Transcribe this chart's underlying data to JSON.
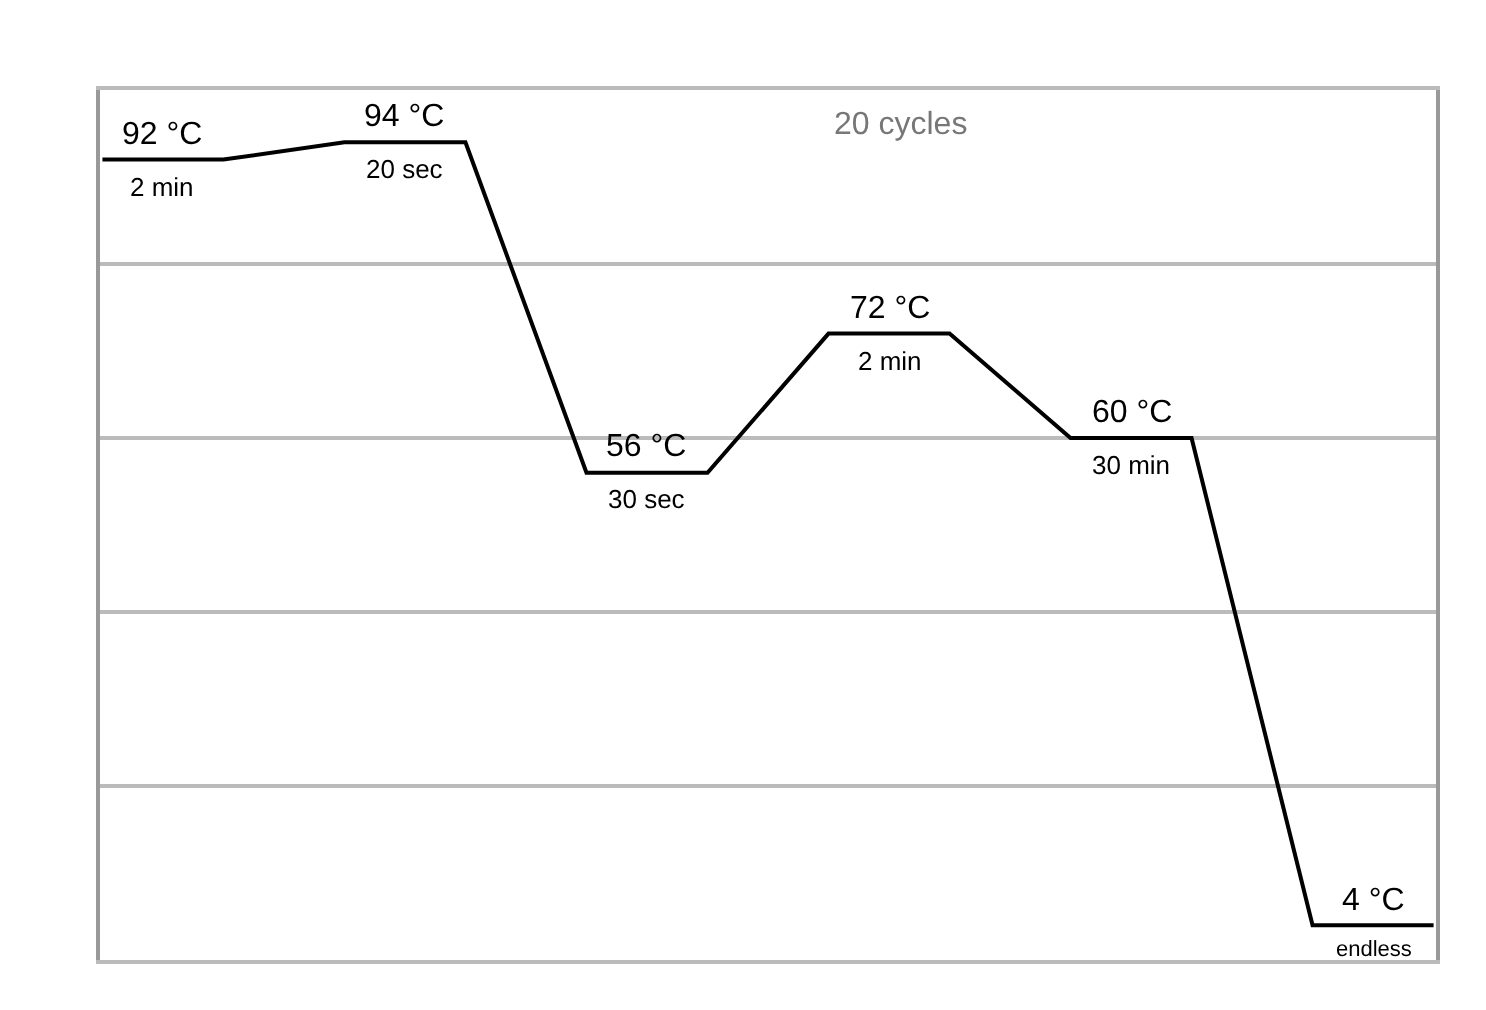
{
  "chart_data": {
    "type": "line",
    "categories": [
      null,
      null,
      null,
      null,
      null,
      null,
      null,
      null,
      null,
      null,
      null,
      null
    ],
    "series": [
      {
        "color": "#000000",
        "values": [
          92,
          92,
          94,
          94,
          56,
          56,
          72,
          72,
          60,
          60,
          4,
          4
        ],
        "value_labels": [
          "92 °C",
          null,
          "94 °C",
          null,
          "56 °C",
          null,
          "72 °C",
          null,
          "60 °C",
          null,
          null,
          "4 °C"
        ]
      }
    ],
    "ylim": [
      0,
      100
    ],
    "yticks": [
      {
        "value": 20,
        "label": null
      },
      {
        "value": 40,
        "label": null
      },
      {
        "value": 60,
        "label": null
      },
      {
        "value": 80,
        "label": null
      }
    ],
    "tick_labels": false,
    "grid": "y",
    "marker": "none",
    "line_style": "solid",
    "annotations": [
      {
        "text": "2 min",
        "y": 92
      },
      {
        "text": "20 sec",
        "y": 94
      },
      {
        "text": "30 sec",
        "y": 56
      },
      {
        "text": "2 min",
        "y": 72
      },
      {
        "text": "30 min",
        "y": 60
      },
      {
        "text": "endless",
        "y": 4
      },
      "20 cycles"
    ]
  }
}
